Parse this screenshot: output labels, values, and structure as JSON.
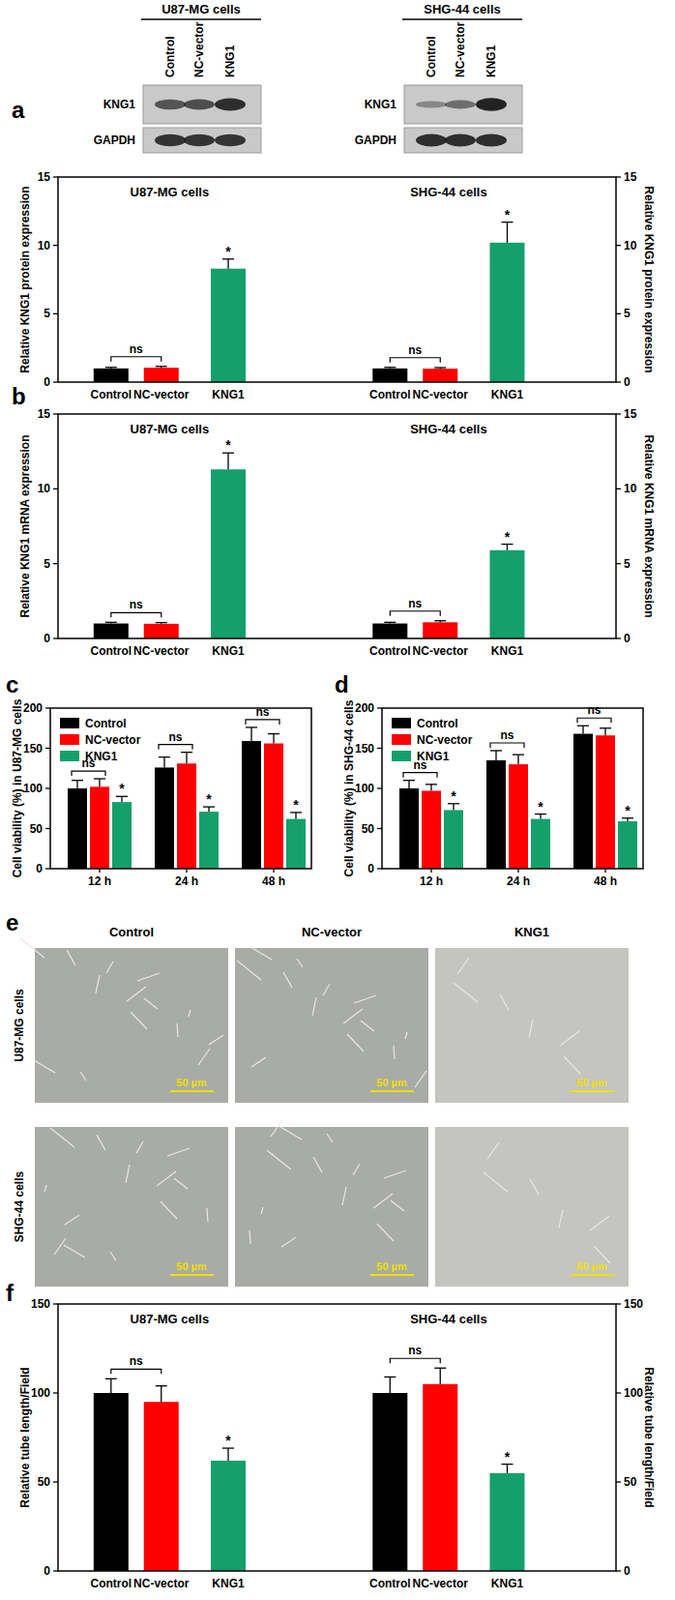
{
  "figure": {
    "panel_labels": [
      "a",
      "b",
      "c",
      "d",
      "e",
      "f"
    ],
    "blots": [
      {
        "title": "U87-MG cells",
        "lanes": [
          "Control",
          "NC-vector",
          "KNG1"
        ],
        "rows": [
          "KNG1",
          "GAPDH"
        ]
      },
      {
        "title": "SHG-44 cells",
        "lanes": [
          "Control",
          "NC-vector",
          "KNG1"
        ],
        "rows": [
          "KNG1",
          "GAPDH"
        ]
      }
    ],
    "micrographs": {
      "columns": [
        "Control",
        "NC-vector",
        "KNG1"
      ],
      "rows": [
        "U87-MG cells",
        "SHG-44 cells"
      ],
      "scale_bar": "50 µm"
    }
  },
  "chart_data": [
    {
      "type": "bar",
      "title": "U87-MG cells",
      "ylabel": "Relative KNG1 protein expression",
      "categories": [
        "Control",
        "NC-vector",
        "KNG1"
      ],
      "values": [
        1.0,
        1.05,
        8.3
      ],
      "errors": [
        0.08,
        0.1,
        0.7
      ],
      "colors": [
        "#000000",
        "#ff0000",
        "#15a06b"
      ],
      "ylim": [
        0,
        15
      ],
      "yticks": [
        0,
        5,
        10,
        15
      ],
      "bracket_label": "ns",
      "star_label": "*"
    },
    {
      "type": "bar",
      "title": "SHG-44 cells",
      "ylabel": "Relative KNG1 protein expression",
      "categories": [
        "Control",
        "NC-vector",
        "KNG1"
      ],
      "values": [
        1.0,
        0.98,
        10.2
      ],
      "errors": [
        0.08,
        0.08,
        1.5
      ],
      "colors": [
        "#000000",
        "#ff0000",
        "#15a06b"
      ],
      "ylim": [
        0,
        15
      ],
      "yticks": [
        0,
        5,
        10,
        15
      ],
      "bracket_label": "ns",
      "star_label": "*"
    },
    {
      "type": "bar",
      "title": "U87-MG cells",
      "ylabel": "Relative KNG1 mRNA expression",
      "categories": [
        "Control",
        "NC-vector",
        "KNG1"
      ],
      "values": [
        1.0,
        0.98,
        11.3
      ],
      "errors": [
        0.08,
        0.08,
        1.1
      ],
      "colors": [
        "#000000",
        "#ff0000",
        "#15a06b"
      ],
      "ylim": [
        0,
        15
      ],
      "yticks": [
        0,
        5,
        10,
        15
      ],
      "bracket_label": "ns",
      "star_label": "*"
    },
    {
      "type": "bar",
      "title": "SHG-44 cells",
      "ylabel": "Relative KNG1 mRNA expression",
      "categories": [
        "Control",
        "NC-vector",
        "KNG1"
      ],
      "values": [
        1.0,
        1.08,
        5.9
      ],
      "errors": [
        0.08,
        0.1,
        0.4
      ],
      "colors": [
        "#000000",
        "#ff0000",
        "#15a06b"
      ],
      "ylim": [
        0,
        15
      ],
      "yticks": [
        0,
        5,
        10,
        15
      ],
      "bracket_label": "ns",
      "star_label": "*"
    },
    {
      "type": "bar",
      "ylabel": "Cell viability (%) in U87-MG cells",
      "categories": [
        "12 h",
        "24 h",
        "48 h"
      ],
      "series": [
        {
          "name": "Control",
          "color": "#000000",
          "values": [
            100,
            126,
            159
          ],
          "errors": [
            10,
            13,
            17
          ]
        },
        {
          "name": "NC-vector",
          "color": "#ff0000",
          "values": [
            102,
            131,
            156
          ],
          "errors": [
            10,
            14,
            12
          ]
        },
        {
          "name": "KNG1",
          "color": "#15a06b",
          "values": [
            83,
            71,
            62
          ],
          "errors": [
            7,
            6,
            8
          ]
        }
      ],
      "ylim": [
        0,
        200
      ],
      "yticks": [
        0,
        50,
        100,
        150,
        200
      ],
      "legend": "upper-left",
      "bracket_label": "ns",
      "star_label": "*"
    },
    {
      "type": "bar",
      "ylabel": "Cell viability (%) in SHG-44 cells",
      "categories": [
        "12 h",
        "24 h",
        "48 h"
      ],
      "series": [
        {
          "name": "Control",
          "color": "#000000",
          "values": [
            100,
            135,
            168
          ],
          "errors": [
            10,
            12,
            10
          ]
        },
        {
          "name": "NC-vector",
          "color": "#ff0000",
          "values": [
            97,
            130,
            166
          ],
          "errors": [
            8,
            12,
            9
          ]
        },
        {
          "name": "KNG1",
          "color": "#15a06b",
          "values": [
            73,
            62,
            59
          ],
          "errors": [
            8,
            6,
            4
          ]
        }
      ],
      "ylim": [
        0,
        200
      ],
      "yticks": [
        0,
        50,
        100,
        150,
        200
      ],
      "legend": "upper-left",
      "bracket_label": "ns",
      "star_label": "*"
    },
    {
      "type": "bar",
      "title": "U87-MG cells",
      "ylabel": "Relative tube length/Field",
      "categories": [
        "Control",
        "NC-vector",
        "KNG1"
      ],
      "values": [
        100,
        95,
        62
      ],
      "errors": [
        8,
        9,
        7
      ],
      "colors": [
        "#000000",
        "#ff0000",
        "#15a06b"
      ],
      "ylim": [
        0,
        150
      ],
      "yticks": [
        0,
        50,
        100,
        150
      ],
      "bracket_label": "ns",
      "star_label": "*"
    },
    {
      "type": "bar",
      "title": "SHG-44 cells",
      "ylabel": "Relative tube length/Field",
      "categories": [
        "Control",
        "NC-vector",
        "KNG1"
      ],
      "values": [
        100,
        105,
        55
      ],
      "errors": [
        9,
        9,
        5
      ],
      "colors": [
        "#000000",
        "#ff0000",
        "#15a06b"
      ],
      "ylim": [
        0,
        150
      ],
      "yticks": [
        0,
        50,
        100,
        150
      ],
      "bracket_label": "ns",
      "star_label": "*"
    }
  ]
}
